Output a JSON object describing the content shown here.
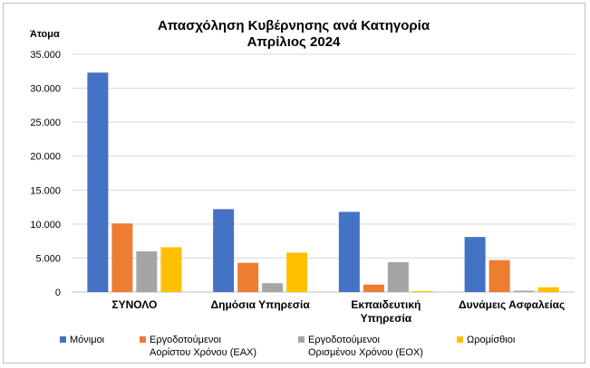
{
  "chart_data": {
    "type": "bar",
    "title": "Απασχόληση Κυβέρνησης ανά Κατηγορία",
    "subtitle": "Απρίλιος 2024",
    "ylabel": "Άτομα",
    "xlabel": "",
    "ylim": [
      0,
      35000
    ],
    "yticks": [
      "0",
      "5.000",
      "10.000",
      "15.000",
      "20.000",
      "25.000",
      "30.000",
      "35.000"
    ],
    "yticks_values": [
      0,
      5000,
      10000,
      15000,
      20000,
      25000,
      30000,
      35000
    ],
    "grid": true,
    "legend_position": "bottom",
    "categories": [
      [
        "ΣΥΝΟΛΟ"
      ],
      [
        "Δημόσια Υπηρεσία"
      ],
      [
        "Εκπαιδευτική",
        "Υπηρεσία"
      ],
      [
        "Δυνάμεις Ασφαλείας"
      ]
    ],
    "series": [
      {
        "name": [
          "Μόνιμοι"
        ],
        "color": "#4472c4",
        "values": [
          32300,
          12200,
          11800,
          8100
        ]
      },
      {
        "name": [
          "Εργοδοτούμενοι",
          "Αορίστου Χρόνου (ΕΑΧ)"
        ],
        "color": "#ed7d31",
        "values": [
          10100,
          4300,
          1100,
          4700
        ]
      },
      {
        "name": [
          "Εργοδοτούμενοι",
          "Ορισμένου Χρόνου (ΕΟΧ)"
        ],
        "color": "#a5a5a5",
        "values": [
          6000,
          1300,
          4400,
          200
        ]
      },
      {
        "name": [
          "Ωρομίσθιοι"
        ],
        "color": "#ffc000",
        "values": [
          6600,
          5800,
          150,
          700
        ]
      }
    ]
  }
}
